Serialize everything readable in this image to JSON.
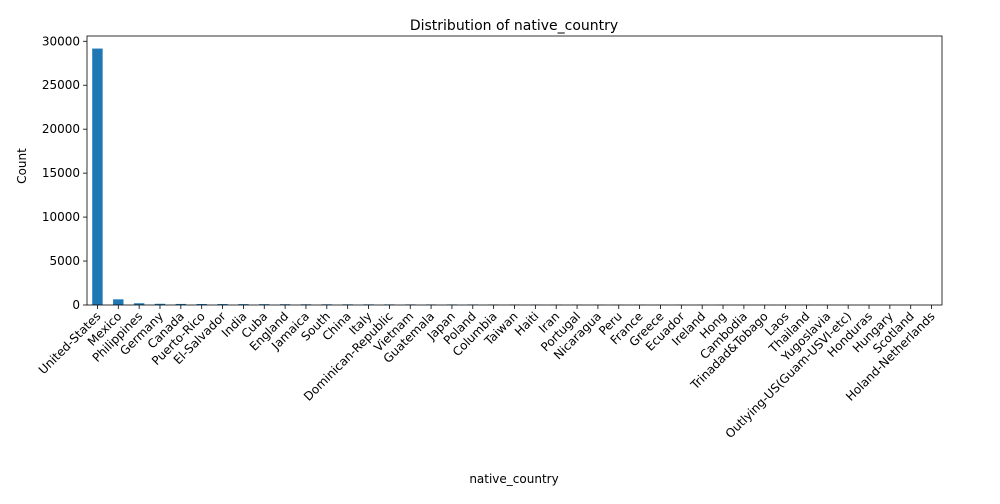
{
  "chart_data": {
    "type": "bar",
    "title": "Distribution of native_country",
    "xlabel": "native_country",
    "ylabel": "Count",
    "ylim": [
      0,
      30600
    ],
    "yticks": [
      0,
      5000,
      10000,
      15000,
      20000,
      25000,
      30000
    ],
    "grid": false,
    "legend": "none",
    "bar_color": "#1f77b4",
    "categories": [
      "United-States",
      "Mexico",
      "Philippines",
      "Germany",
      "Canada",
      "Puerto-Rico",
      "El-Salvador",
      "India",
      "Cuba",
      "England",
      "Jamaica",
      "South",
      "China",
      "Italy",
      "Dominican-Republic",
      "Vietnam",
      "Guatemala",
      "Japan",
      "Poland",
      "Columbia",
      "Taiwan",
      "Haiti",
      "Iran",
      "Portugal",
      "Nicaragua",
      "Peru",
      "France",
      "Greece",
      "Ecuador",
      "Ireland",
      "Hong",
      "Cambodia",
      "Trinadad&Tobago",
      "Laos",
      "Thailand",
      "Yugoslavia",
      "Outlying-US(Guam-USVI-etc)",
      "Honduras",
      "Hungary",
      "Scotland",
      "Holand-Netherlands"
    ],
    "values": [
      29170,
      643,
      198,
      137,
      121,
      114,
      106,
      100,
      95,
      90,
      81,
      80,
      75,
      73,
      70,
      67,
      64,
      62,
      60,
      59,
      51,
      44,
      43,
      37,
      34,
      31,
      29,
      29,
      28,
      24,
      20,
      19,
      19,
      18,
      18,
      16,
      14,
      13,
      13,
      12,
      1
    ]
  }
}
